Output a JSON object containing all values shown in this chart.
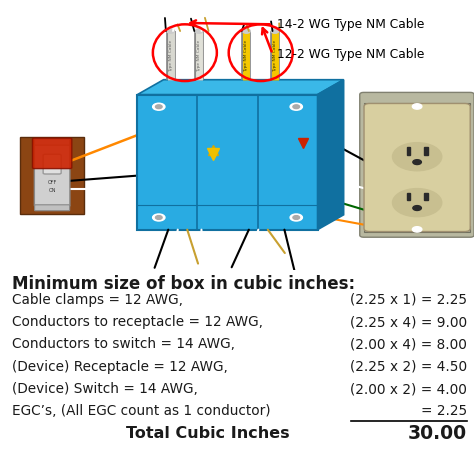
{
  "title_text": "Minimum size of box in cubic inches:",
  "rows": [
    {
      "left": "Cable clamps = 12 AWG,",
      "right": "(2.25 x 1) = 2.25"
    },
    {
      "left": "Conductors to receptacle = 12 AWG,",
      "right": "(2.25 x 4) = 9.00"
    },
    {
      "left": "Conductors to switch = 14 AWG,",
      "right": "(2.00 x 4) = 8.00"
    },
    {
      "left": "(Device) Receptacle = 12 AWG,",
      "right": "(2.25 x 2) = 4.50"
    },
    {
      "left": "(Device) Switch = 14 AWG,",
      "right": "(2.00 x 2) = 4.00"
    },
    {
      "left": "EGC’s, (All EGC count as 1 conductor)",
      "right": "= 2.25"
    }
  ],
  "total_left": "Total Cubic Inches",
  "total_right": "30.00",
  "label1": "14-2 WG Type NM Cable",
  "label2": "12-2 WG Type NM Cable",
  "bg_color": "#ffffff",
  "text_color": "#1a1a1a",
  "title_fontsize": 12,
  "row_fontsize": 9.8,
  "total_fontsize": 11.5,
  "figure_width": 4.74,
  "figure_height": 4.74,
  "dpi": 100,
  "box_blue": "#29abe2",
  "box_blue_dark": "#1070a0",
  "box_blue_top": "#3ab8e8",
  "switch_gray": "#c8c8c8",
  "switch_red": "#cc2200",
  "outlet_cream": "#d8cfa0",
  "outlet_bg": "#c0b890",
  "wire_orange": "#ff8800",
  "wire_gold": "#c8a030",
  "wire_yellow_nut": "#f0c000",
  "cable_white": "#e8e8e0",
  "cable_yellow": "#f5c800"
}
